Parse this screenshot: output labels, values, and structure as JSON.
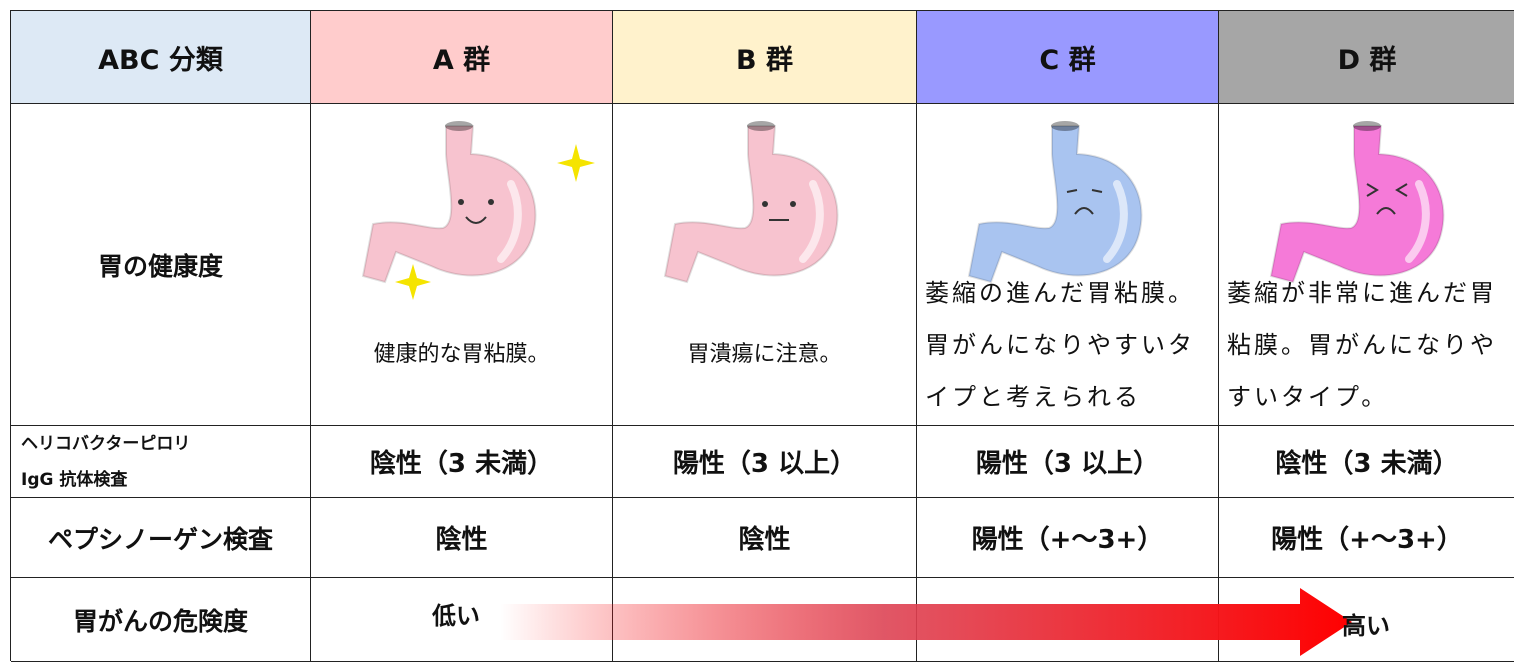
{
  "header": {
    "title": "ABC 分類",
    "groups": [
      "A 群",
      "B 群",
      "C 群",
      "D 群"
    ]
  },
  "rows": {
    "health": {
      "label": "胃の健康度",
      "cells": [
        "健康的な胃粘膜。",
        "胃潰瘍に注意。",
        "萎縮の進んだ胃粘膜。胃がんになりやすいタイプと考えられる",
        "萎縮が非常に進んだ胃粘膜。胃がんになりやすいタイプ。"
      ]
    },
    "helicobacter": {
      "label": [
        "ヘリコバクターピロリ",
        "IgG 抗体検査"
      ],
      "cells": [
        "陰性（3 未満）",
        "陽性（3 以上）",
        "陽性（3 以上）",
        "陰性（3 未満）"
      ]
    },
    "pepsinogen": {
      "label": "ペプシノーゲン検査",
      "cells": [
        "陰性",
        "陰性",
        "陽性（+～3+）",
        "陽性（+～3+）"
      ]
    },
    "risk": {
      "label": "胃がんの危険度",
      "low": "低い",
      "high": "高い"
    }
  }
}
